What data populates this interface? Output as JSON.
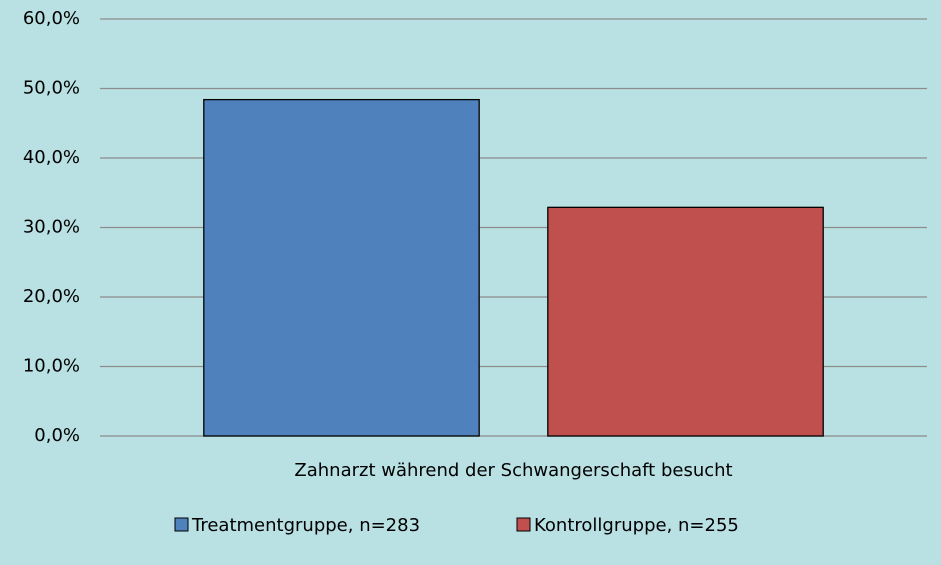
{
  "chart_data": {
    "type": "bar",
    "categories": [
      "Zahnarzt während der Schwangerschaft besucht"
    ],
    "series": [
      {
        "name": "Treatmentgruppe, n=283",
        "color": "#4f81bd",
        "values": [
          48.4
        ]
      },
      {
        "name": "Kontrollgruppe, n=255",
        "color": "#c0504d",
        "values": [
          32.9
        ]
      }
    ],
    "ylim": [
      0,
      60
    ],
    "yticks": [
      {
        "value": 0,
        "label": "0,0%"
      },
      {
        "value": 10,
        "label": "10,0%"
      },
      {
        "value": 20,
        "label": "20,0%"
      },
      {
        "value": 30,
        "label": "30,0%"
      },
      {
        "value": 40,
        "label": "40,0%"
      },
      {
        "value": 50,
        "label": "50,0%"
      },
      {
        "value": 60,
        "label": "60,0%"
      }
    ],
    "grid": true,
    "legend": "bottom"
  }
}
